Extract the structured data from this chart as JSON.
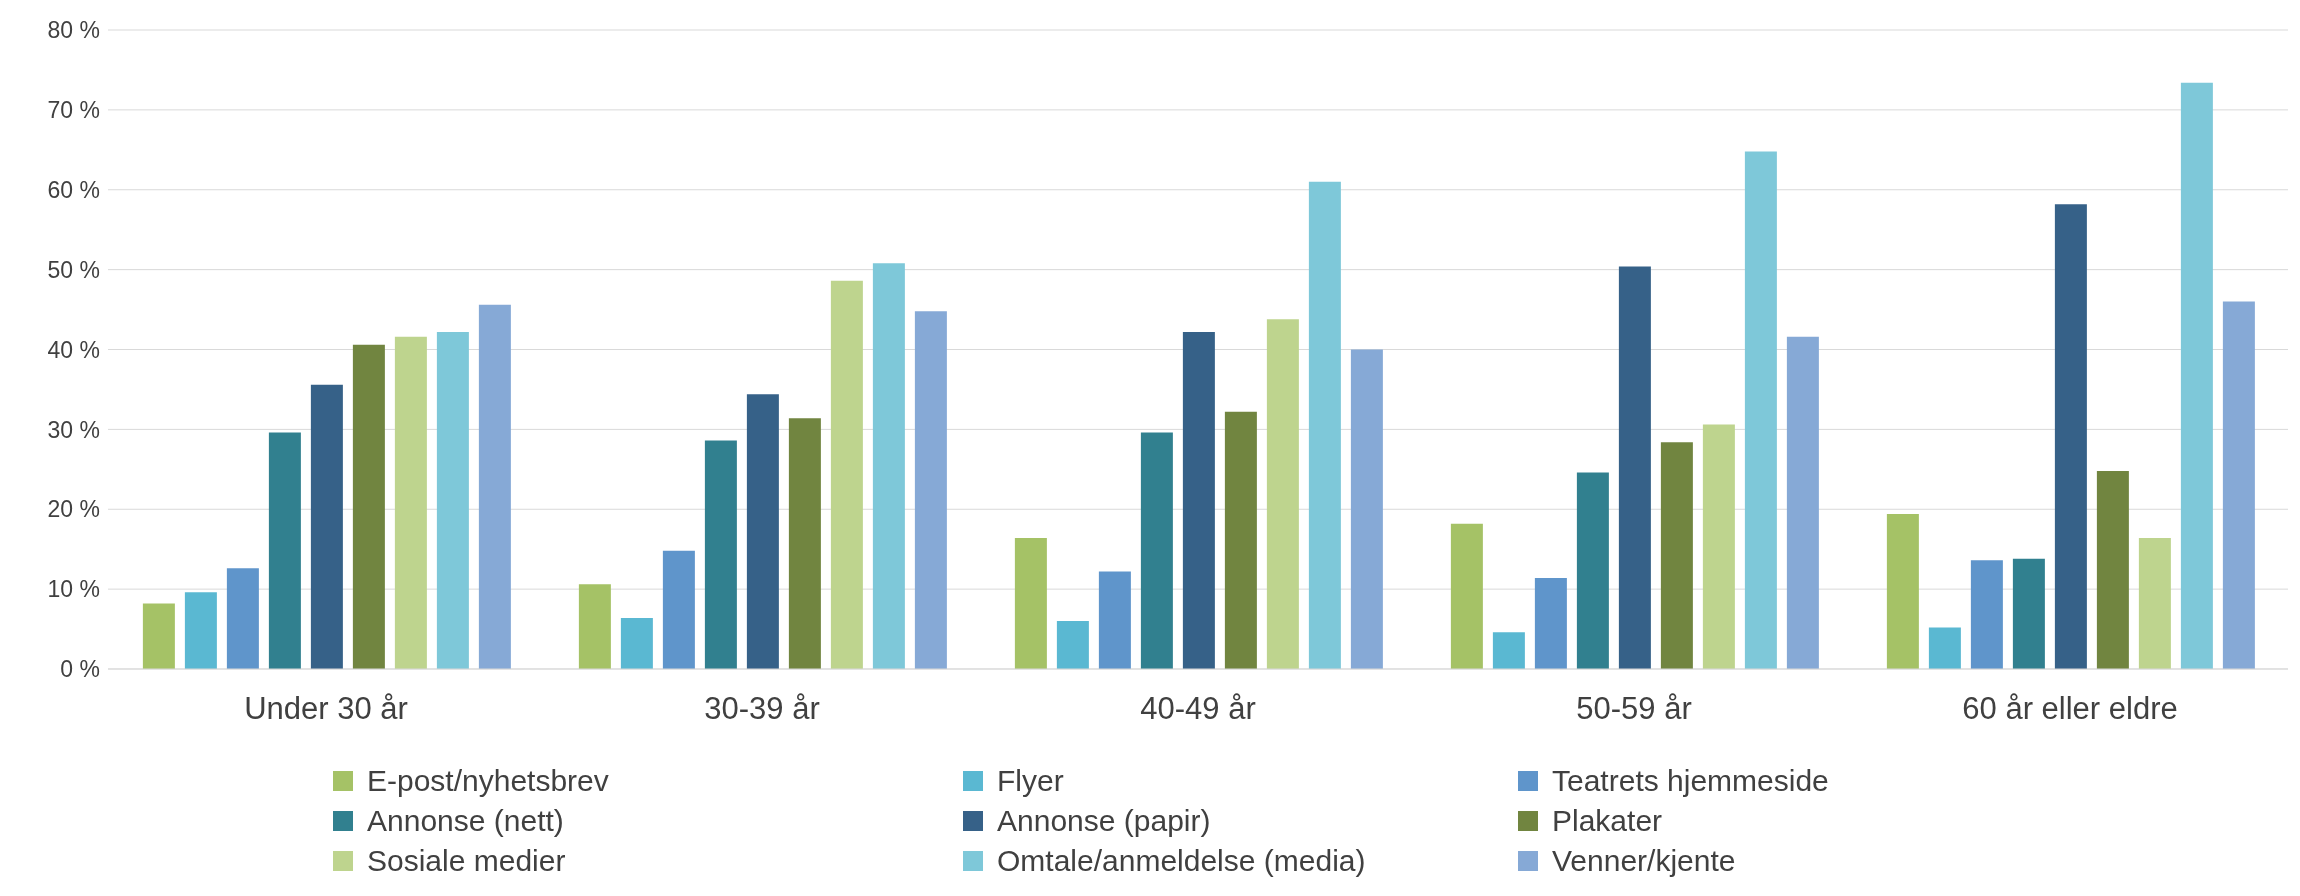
{
  "chart_data": {
    "type": "bar",
    "categories": [
      "Under 30 år",
      "30-39 år",
      "40-49 år",
      "50-59 år",
      "60 år eller eldre"
    ],
    "series": [
      {
        "name": "E-post/nyhetsbrev",
        "color": "#a5c266",
        "values": [
          8.2,
          10.6,
          16.4,
          18.2,
          19.4
        ]
      },
      {
        "name": "Flyer",
        "color": "#5ab8d2",
        "values": [
          9.6,
          6.4,
          6.0,
          4.6,
          5.2
        ]
      },
      {
        "name": "Teatrets hjemmeside",
        "color": "#5f95cb",
        "values": [
          12.6,
          14.8,
          12.2,
          11.4,
          13.6
        ]
      },
      {
        "name": "Annonse (nett)",
        "color": "#31808f",
        "values": [
          29.6,
          28.6,
          29.6,
          24.6,
          13.8
        ]
      },
      {
        "name": "Annonse (papir)",
        "color": "#366188",
        "values": [
          35.6,
          34.4,
          42.2,
          50.4,
          58.2
        ]
      },
      {
        "name": "Plakater",
        "color": "#718540",
        "values": [
          40.6,
          31.4,
          32.2,
          28.4,
          24.8
        ]
      },
      {
        "name": "Sosiale medier",
        "color": "#bed48e",
        "values": [
          41.6,
          48.6,
          43.8,
          30.6,
          16.4
        ]
      },
      {
        "name": "Omtale/anmeldelse (media)",
        "color": "#7ec8d9",
        "values": [
          42.2,
          50.8,
          61.0,
          64.8,
          73.4
        ]
      },
      {
        "name": "Venner/kjente",
        "color": "#86a9d6",
        "values": [
          45.6,
          44.8,
          40.0,
          41.6,
          46.0
        ]
      }
    ],
    "ylim": [
      0,
      80
    ],
    "yticks": [
      {
        "value": 0,
        "label": "0 %"
      },
      {
        "value": 10,
        "label": "10 %"
      },
      {
        "value": 20,
        "label": "20 %"
      },
      {
        "value": 30,
        "label": "30 %"
      },
      {
        "value": 40,
        "label": "40 %"
      },
      {
        "value": 50,
        "label": "50 %"
      },
      {
        "value": 60,
        "label": "60 %"
      },
      {
        "value": 70,
        "label": "70 %"
      },
      {
        "value": 80,
        "label": "80 %"
      }
    ],
    "grid": "y",
    "legend": "bottom"
  }
}
